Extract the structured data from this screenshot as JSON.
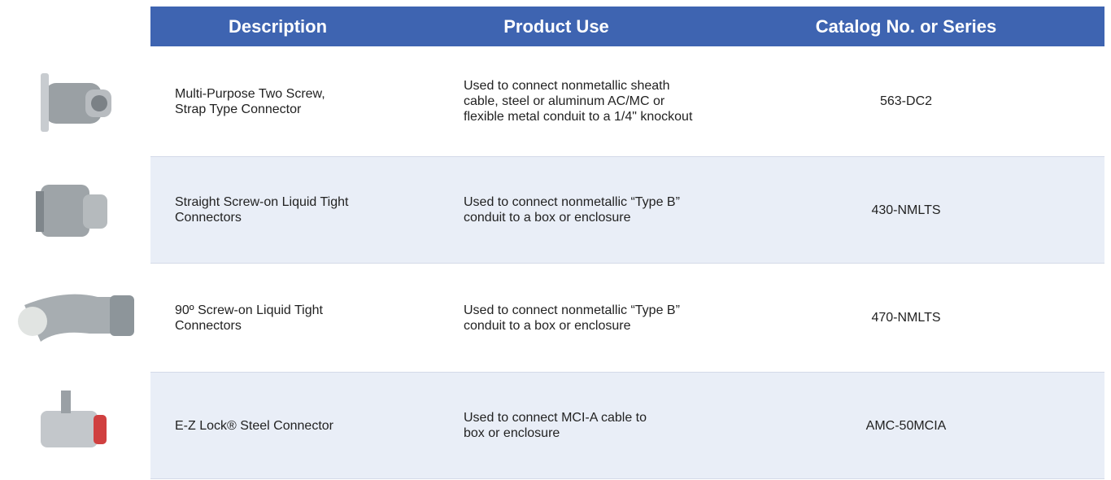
{
  "table": {
    "header": [
      "Description",
      "Product Use",
      "Catalog No. or Series"
    ],
    "rows": [
      [
        [
          "Multi-Purpose Two Screw,",
          "Strap Type Connector"
        ],
        [
          "Used to connect nonmetallic sheath",
          "cable, steel or aluminum AC/MC or",
          "flexible metal conduit to a 1/4\" knockout"
        ],
        [
          "563-DC2"
        ]
      ],
      [
        [
          "Straight Screw-on Liquid Tight",
          "Connectors"
        ],
        [
          "Used to connect nonmetallic “Type B”",
          "conduit to a box or enclosure"
        ],
        [
          "430-NMLTS"
        ]
      ],
      [
        [
          "90º Screw-on Liquid Tight",
          "Connectors"
        ],
        [
          "Used to connect nonmetallic “Type B”",
          "conduit to a box or enclosure"
        ],
        [
          "470-NMLTS"
        ]
      ],
      [
        [
          "E-Z Lock® Steel Connector"
        ],
        [
          "Used to connect MCI-A cable to",
          "box or enclosure"
        ],
        [
          "AMC-50MCIA"
        ]
      ]
    ]
  }
}
